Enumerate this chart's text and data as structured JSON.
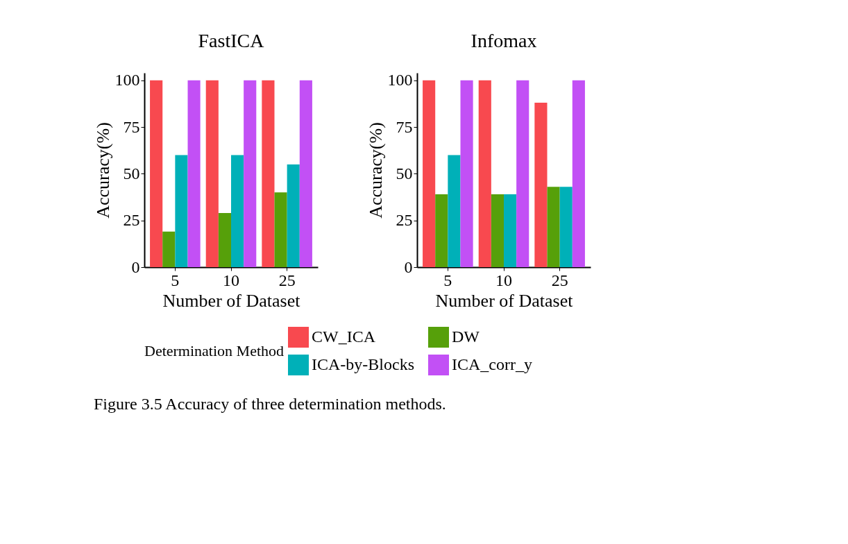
{
  "chart_data": [
    {
      "type": "bar",
      "title": "FastICA",
      "xlabel": "Number of Dataset",
      "ylabel": "Accuracy(%)",
      "categories": [
        "5",
        "10",
        "25"
      ],
      "ylim": [
        0,
        104
      ],
      "yticks": [
        0,
        25,
        50,
        75,
        100
      ],
      "legend": "bottom",
      "legend_title": "Determination Method",
      "annotations": [
        "Figure 3.5 Accuracy of three determination methods."
      ],
      "series": [
        {
          "name": "CW_ICA",
          "color": "#f8494f",
          "values": [
            100,
            100,
            100
          ]
        },
        {
          "name": "DW",
          "color": "#56a00a",
          "values": [
            19,
            29,
            40
          ]
        },
        {
          "name": "ICA-by-Blocks",
          "color": "#00b0b8",
          "values": [
            60,
            60,
            55
          ]
        },
        {
          "name": "ICA_corr_y",
          "color": "#c250f5",
          "values": [
            100,
            100,
            100
          ]
        }
      ]
    },
    {
      "type": "bar",
      "title": "Infomax",
      "xlabel": "Number of Dataset",
      "ylabel": "Accuracy(%)",
      "categories": [
        "5",
        "10",
        "25"
      ],
      "ylim": [
        0,
        104
      ],
      "yticks": [
        0,
        25,
        50,
        75,
        100
      ],
      "series": [
        {
          "name": "CW_ICA",
          "color": "#f8494f",
          "values": [
            100,
            100,
            88
          ]
        },
        {
          "name": "DW",
          "color": "#56a00a",
          "values": [
            39,
            39,
            43
          ]
        },
        {
          "name": "ICA-by-Blocks",
          "color": "#00b0b8",
          "values": [
            60,
            39,
            43
          ]
        },
        {
          "name": "ICA_corr_y",
          "color": "#c250f5",
          "values": [
            100,
            100,
            100
          ]
        }
      ]
    }
  ]
}
